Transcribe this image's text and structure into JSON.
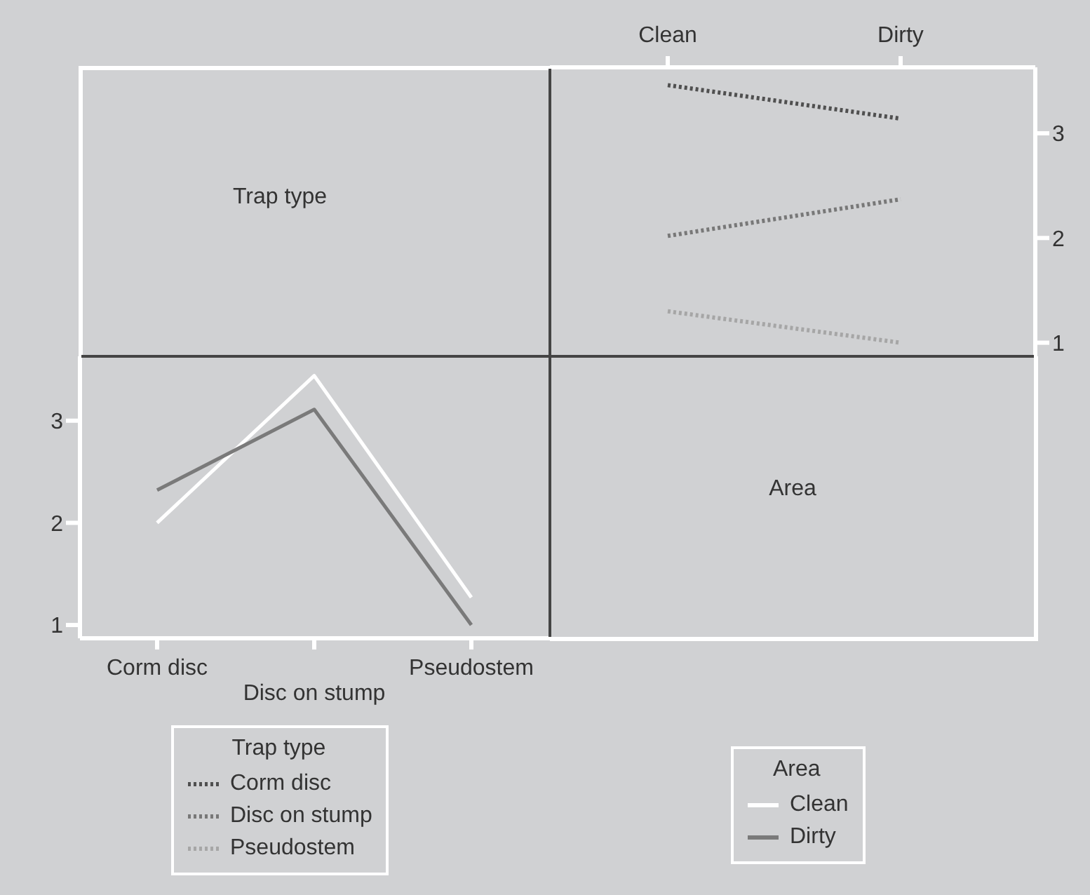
{
  "chart_data": [
    {
      "type": "other",
      "title": "Trap type"
    },
    {
      "type": "line",
      "categories": [
        "Clean",
        "Dirty"
      ],
      "ylim": [
        0.87,
        3.63
      ],
      "yticks": [
        1,
        2,
        3
      ],
      "grid": false,
      "marker": "none",
      "line_style": "dotted",
      "legend": "bottom",
      "legend_title": "Trap type",
      "series": [
        {
          "name": "Corm disc",
          "color": "#505050",
          "values": [
            3.46,
            3.14
          ]
        },
        {
          "name": "Disc on stump",
          "color": "#787878",
          "values": [
            2.02,
            2.37
          ]
        },
        {
          "name": "Pseudostem",
          "color": "#a6a6a6",
          "values": [
            1.3,
            1.0
          ]
        }
      ]
    },
    {
      "type": "line",
      "categories": [
        "Corm disc",
        "Disc on stump",
        "Pseudostem"
      ],
      "ylim": [
        0.87,
        3.63
      ],
      "yticks": [
        1,
        2,
        3
      ],
      "grid": false,
      "marker": "none",
      "line_style": "solid",
      "legend": "bottom",
      "legend_title": "Area",
      "series": [
        {
          "name": "Clean",
          "color": "#ffffff",
          "values": [
            2.0,
            3.44,
            1.27
          ]
        },
        {
          "name": "Dirty",
          "color": "#7a7a7a",
          "values": [
            2.32,
            3.11,
            1.0
          ]
        }
      ]
    },
    {
      "type": "other",
      "title": "Area"
    }
  ]
}
